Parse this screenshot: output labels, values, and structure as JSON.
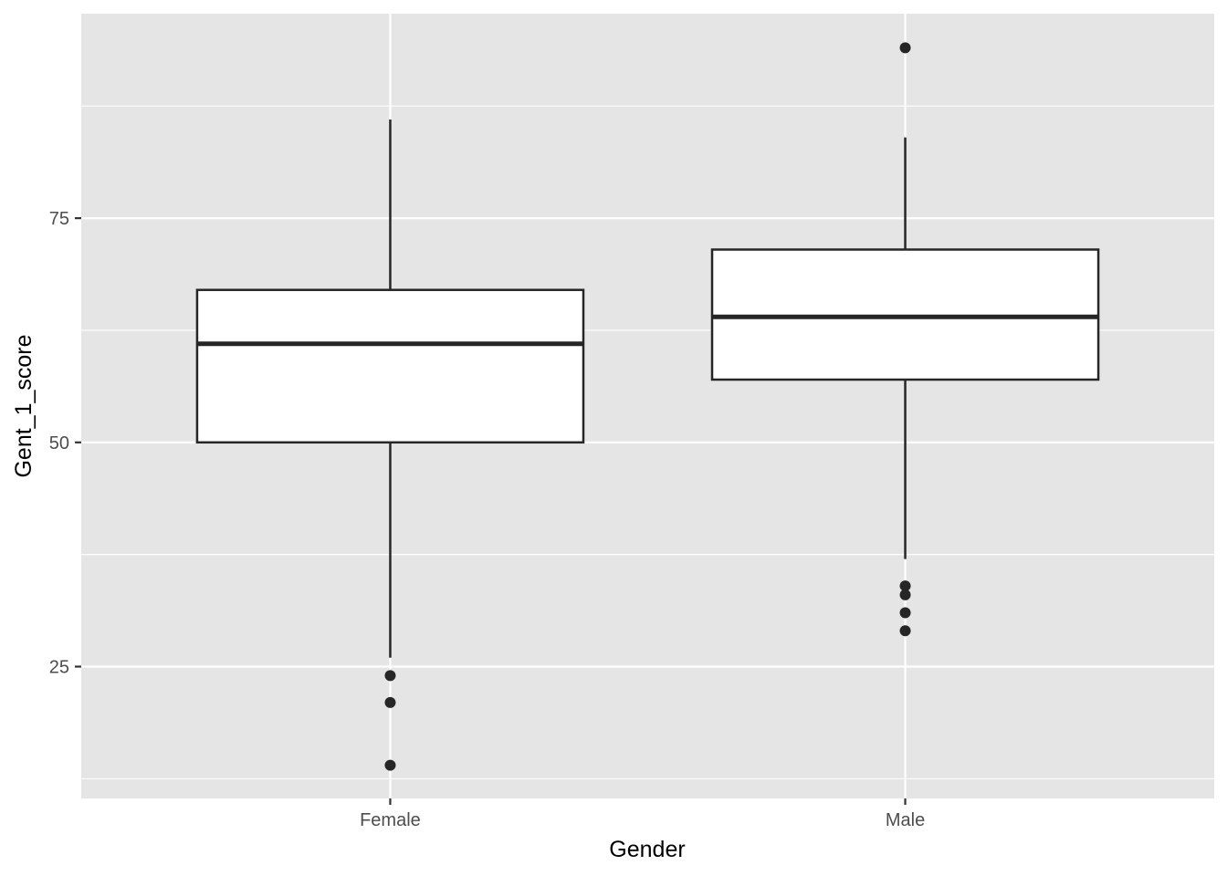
{
  "chart_data": {
    "type": "boxplot",
    "title": "",
    "xlabel": "Gender",
    "ylabel": "Gent_1_score",
    "categories": [
      "Female",
      "Male"
    ],
    "boxes": [
      {
        "category": "Female",
        "whisker_low": 26,
        "q1": 50,
        "median": 61,
        "q3": 67,
        "whisker_high": 86,
        "outliers": [
          24,
          21,
          14
        ]
      },
      {
        "category": "Male",
        "whisker_low": 37,
        "q1": 57,
        "median": 64,
        "q3": 71.5,
        "whisker_high": 84,
        "outliers": [
          94,
          34,
          33,
          31,
          29
        ]
      }
    ],
    "ylim": [
      10.3,
      97.8
    ],
    "yticks": [
      25,
      50,
      75
    ],
    "ytick_labels": [
      "25",
      "50",
      "75"
    ],
    "y_minor_gridlines": [
      12.5,
      37.5,
      62.5,
      87.5
    ],
    "grid": true,
    "panel_color": "#e5e5e5",
    "grid_color": "#ffffff",
    "box_fill": "#ffffff",
    "line_color": "#262626"
  }
}
